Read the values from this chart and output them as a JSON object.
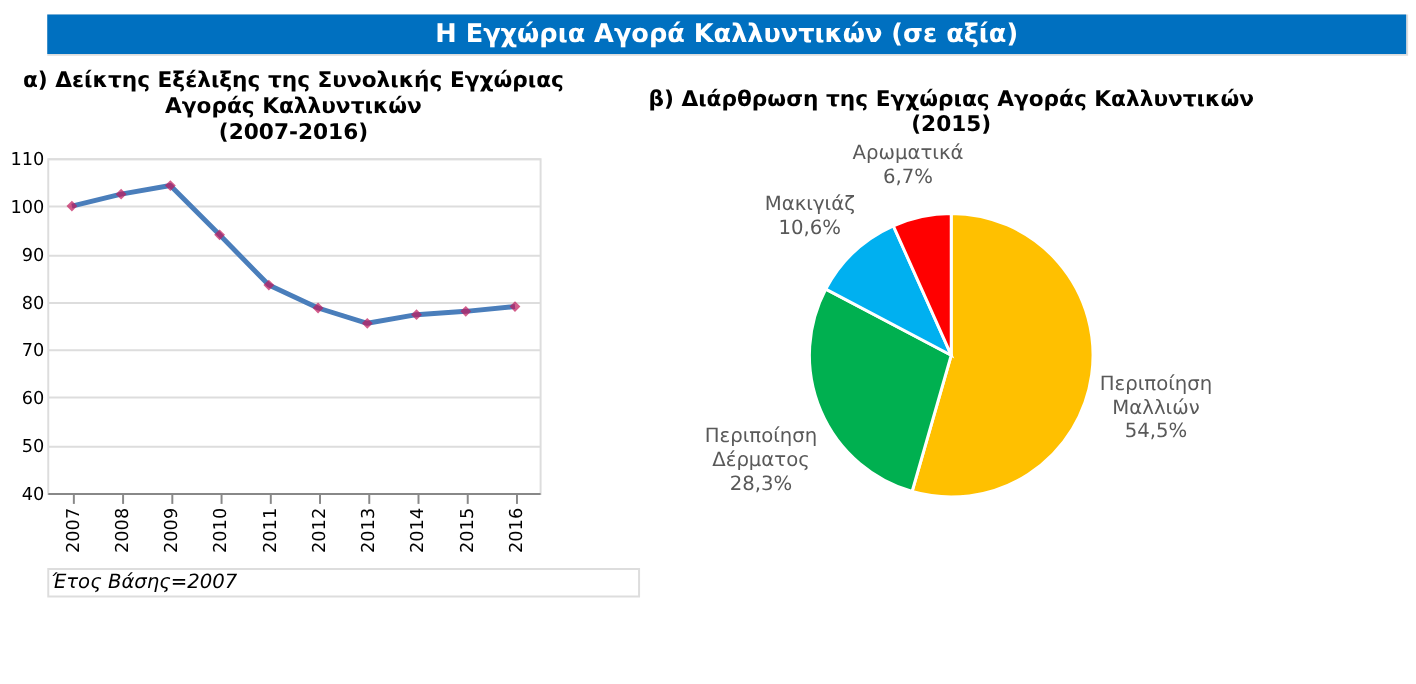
{
  "chart_data": [
    {
      "type": "other",
      "title": "Η Εγχώρια Αγορά Καλλυντικών (σε αξία)"
    },
    {
      "type": "line",
      "title": "α) Δείκτης Εξέλιξης της Συνολικής Εγχώριας\nΑγοράς Καλλυντικών\n(2007-2016)",
      "categories": [
        "2007",
        "2008",
        "2009",
        "2010",
        "2011",
        "2012",
        "2013",
        "2014",
        "2015",
        "2016"
      ],
      "series": [
        {
          "color": "#4a7ebb",
          "values": [
            100,
            102.5,
            104.3,
            94,
            83.5,
            78.7,
            75.5,
            77.3,
            78,
            79
          ]
        }
      ],
      "ylim": [
        40,
        110
      ],
      "yticks": [
        40,
        50,
        60,
        70,
        80,
        90,
        100,
        110
      ],
      "grid": "y",
      "marker": "diamond",
      "legend": false,
      "annotations": [
        "Έτος Βάσης=2007"
      ]
    },
    {
      "type": "pie",
      "title": "β) Διάρθρωση  της Εγχώριας Αγοράς Καλλυντικών\n(2015)",
      "categories": [
        "Περιποίηση Μαλλιών",
        "Περιποίηση Δέρματος",
        "Μακιγιάζ",
        "Αρωματικά"
      ],
      "values": [
        54.5,
        28.3,
        10.6,
        6.7
      ],
      "colors": [
        "#ffc000",
        "#00b050",
        "#00b0f0",
        "#ff0000"
      ],
      "value_labels": [
        "54,5%",
        "28,3%",
        "10,6%",
        "6,7%"
      ],
      "legend": false
    }
  ]
}
